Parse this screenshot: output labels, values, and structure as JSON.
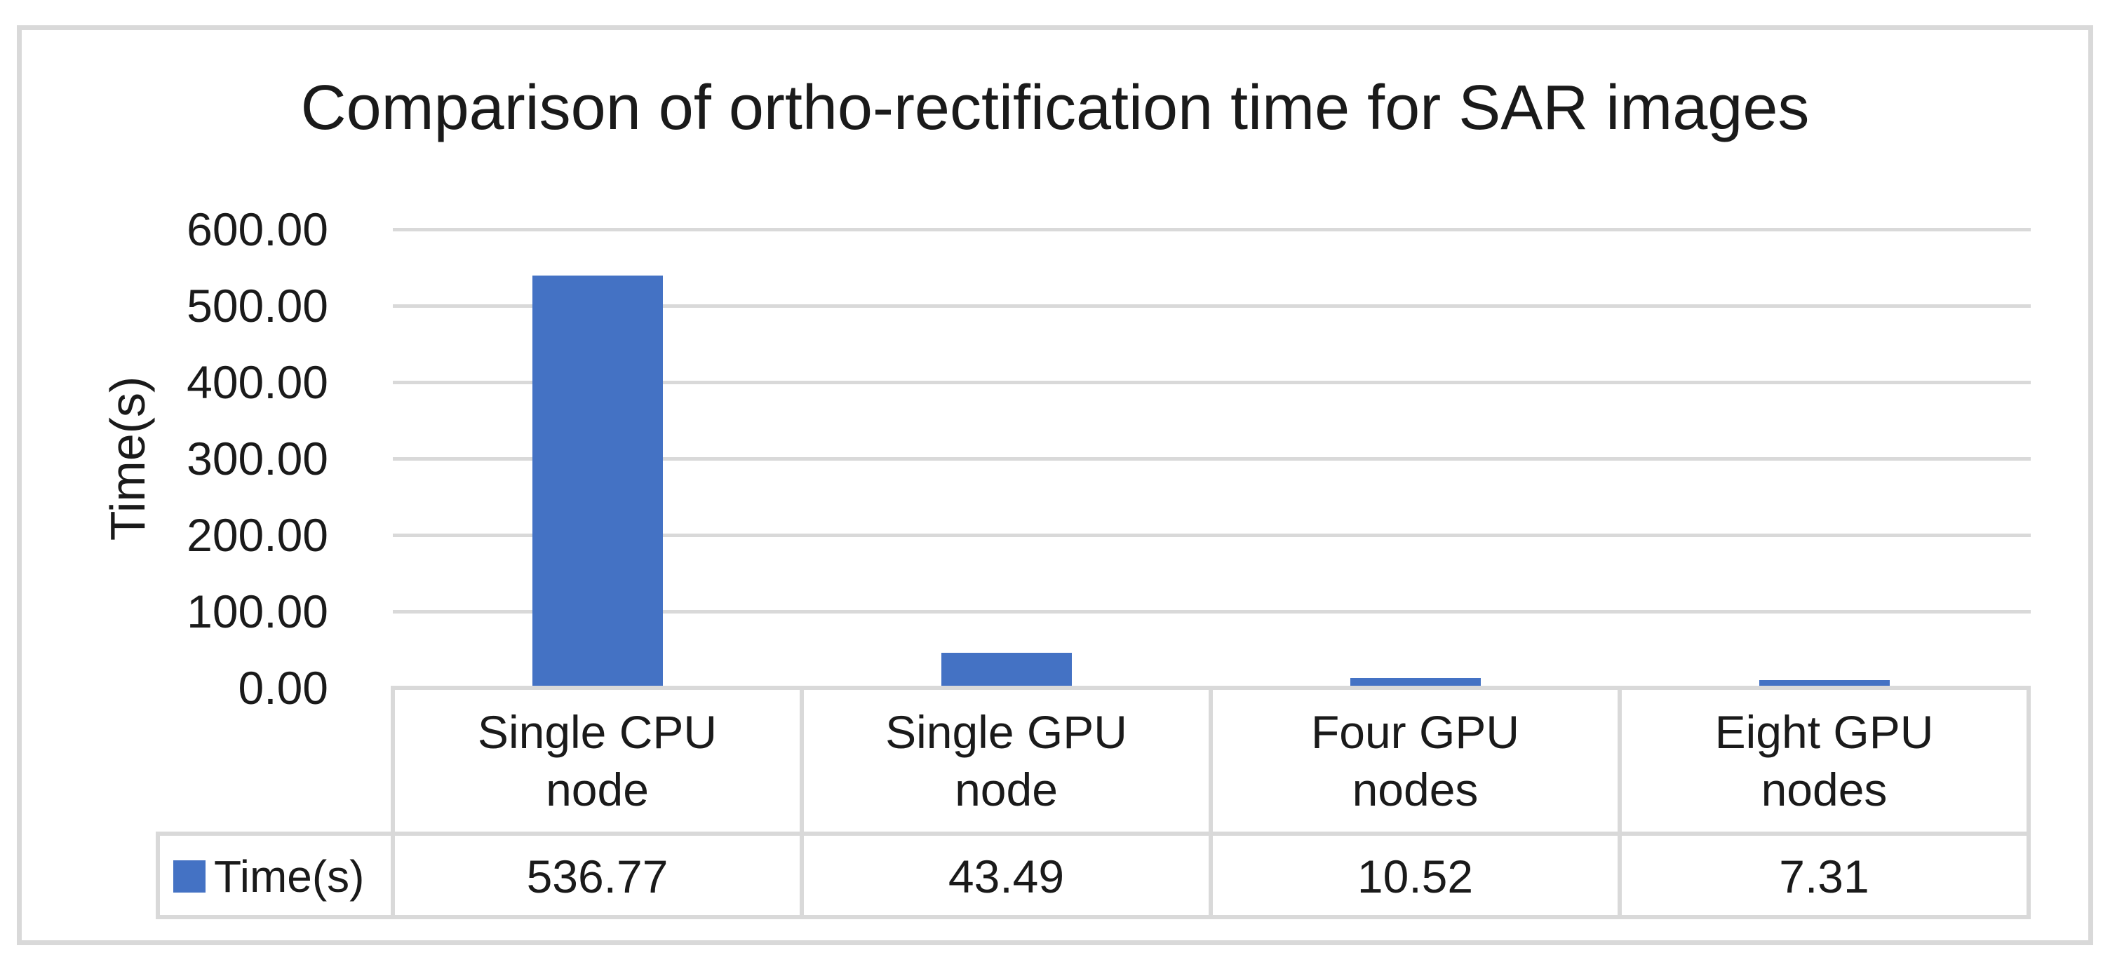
{
  "chart_data": {
    "type": "bar",
    "title": "Comparison of ortho-rectification time for SAR images",
    "xlabel": "",
    "ylabel": "Time(s)",
    "categories": [
      "Single CPU node",
      "Single GPU node",
      "Four GPU nodes",
      "Eight GPU nodes"
    ],
    "series": [
      {
        "name": "Time(s)",
        "values": [
          536.77,
          43.49,
          10.52,
          7.31
        ]
      }
    ],
    "ylim": [
      0,
      600
    ],
    "ytick_interval": 100,
    "ytick_labels_top_to_bottom": [
      "600.00",
      "500.00",
      "400.00",
      "300.00",
      "200.00",
      "100.00",
      "0.00"
    ],
    "grid": "horizontal",
    "legend_position": "data-table-left",
    "bar_color": "#4472C4",
    "grid_color": "#D9D9D9",
    "border_color": "#D9D9D9",
    "data_table": {
      "legend_label": "Time(s)",
      "value_labels": [
        "536.77",
        "43.49",
        "10.52",
        "7.31"
      ]
    }
  }
}
